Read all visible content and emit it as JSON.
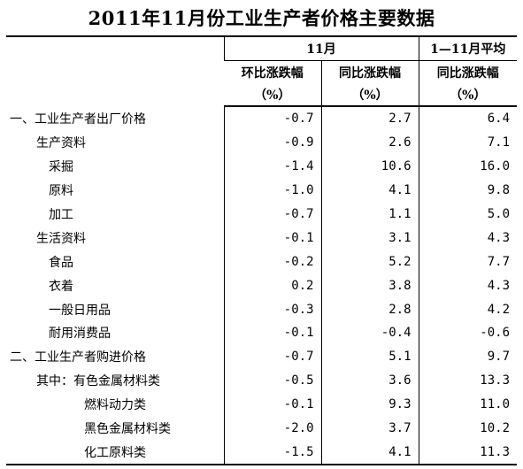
{
  "title": "2011年11月份工业生产者价格主要数据",
  "header": {
    "group_month": "11月",
    "group_avg": "1—11月平均",
    "col_mom": "环比涨跌幅",
    "col_yoy": "同比涨跌幅",
    "col_avg_yoy": "同比涨跌幅",
    "unit": "（%）"
  },
  "rows": [
    {
      "label": "一、工业生产者出厂价格",
      "mom": "-0.7",
      "yoy": "2.7",
      "avg": "6.4"
    },
    {
      "label": "生产资料",
      "mom": "-0.9",
      "yoy": "2.6",
      "avg": "7.1"
    },
    {
      "label": "采掘",
      "mom": "-1.4",
      "yoy": "10.6",
      "avg": "16.0"
    },
    {
      "label": "原料",
      "mom": "-1.0",
      "yoy": "4.1",
      "avg": "9.8"
    },
    {
      "label": "加工",
      "mom": "-0.7",
      "yoy": "1.1",
      "avg": "5.0"
    },
    {
      "label": "生活资料",
      "mom": "-0.1",
      "yoy": "3.1",
      "avg": "4.3"
    },
    {
      "label": "食品",
      "mom": "-0.2",
      "yoy": "5.2",
      "avg": "7.7"
    },
    {
      "label": "衣着",
      "mom": "0.2",
      "yoy": "3.8",
      "avg": "4.3"
    },
    {
      "label": "一般日用品",
      "mom": "-0.3",
      "yoy": "2.8",
      "avg": "4.2"
    },
    {
      "label": "耐用消费品",
      "mom": "-0.1",
      "yoy": "-0.4",
      "avg": "-0.6"
    },
    {
      "label": "二、工业生产者购进价格",
      "mom": "-0.7",
      "yoy": "5.1",
      "avg": "9.7"
    },
    {
      "label": "其中：有色金属材料类",
      "mom": "-0.5",
      "yoy": "3.6",
      "avg": "13.3"
    },
    {
      "label": "燃料动力类",
      "mom": "-0.1",
      "yoy": "9.3",
      "avg": "11.0"
    },
    {
      "label": "黑色金属材料类",
      "mom": "-2.0",
      "yoy": "3.7",
      "avg": "10.2"
    },
    {
      "label": "化工原料类",
      "mom": "-1.5",
      "yoy": "4.1",
      "avg": "11.3"
    }
  ]
}
